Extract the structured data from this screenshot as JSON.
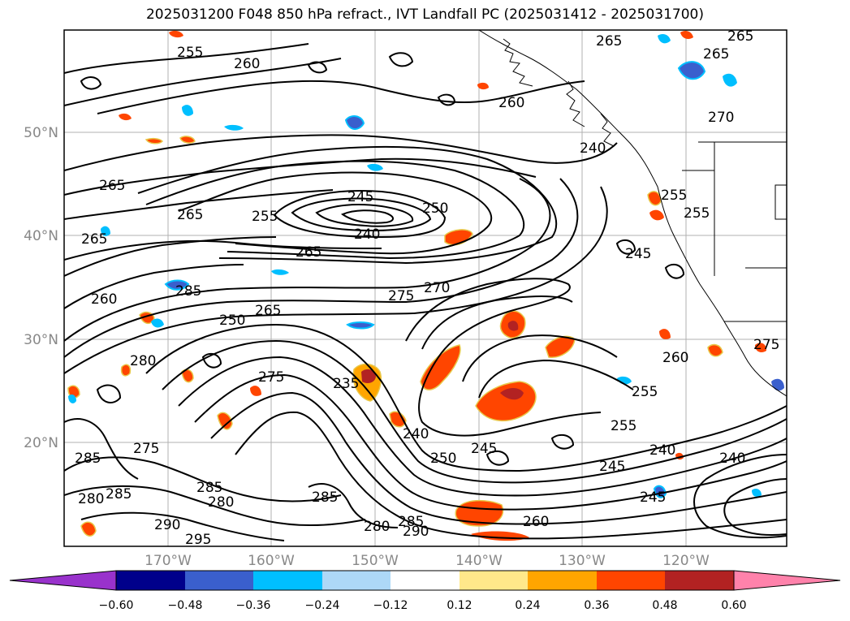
{
  "title": "2025031200 F048 850 hPa refract., IVT Landfall PC (2025031412 - 2025031700)",
  "axes": {
    "lat_labels": [
      "50°N",
      "40°N",
      "30°N",
      "20°N"
    ],
    "lon_labels": [
      "170°W",
      "160°W",
      "150°W",
      "140°W",
      "130°W",
      "120°W"
    ]
  },
  "contour_labels": [
    "255",
    "260",
    "265",
    "265",
    "265",
    "265",
    "265",
    "265",
    "245",
    "240",
    "250",
    "255",
    "265",
    "260",
    "285",
    "265",
    "250",
    "275",
    "270",
    "260",
    "280",
    "275",
    "235",
    "240",
    "250",
    "245",
    "240",
    "245",
    "240",
    "255",
    "255",
    "260",
    "285",
    "275",
    "285",
    "280",
    "285",
    "280",
    "290",
    "295",
    "285",
    "280",
    "285",
    "290",
    "260",
    "245",
    "240",
    "245",
    "255",
    "255",
    "270",
    "275"
  ],
  "colorbar": {
    "ticks": [
      "−0.60",
      "−0.48",
      "−0.36",
      "−0.24",
      "−0.12",
      "0.12",
      "0.24",
      "0.36",
      "0.48",
      "0.60"
    ],
    "colors": [
      "#9932cc",
      "#00008b",
      "#3a5fcd",
      "#00bfff",
      "#add8f7",
      "#ffffff",
      "#ffe88a",
      "#ffa500",
      "#ff4500",
      "#b22222",
      "#ff82ab"
    ]
  }
}
